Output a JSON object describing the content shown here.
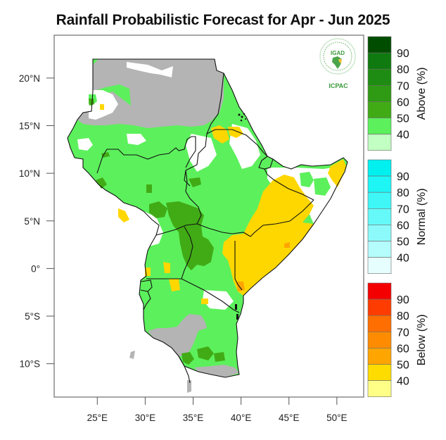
{
  "title": "Rainfall Probabilistic Forecast for Apr - Jun 2025",
  "logo": {
    "top_text": "IGAD",
    "bottom_text": "ICPAC",
    "icon": "igad-africa-emblem-icon"
  },
  "axes": {
    "lat_ticks": [
      {
        "value": 20,
        "label": "20°N"
      },
      {
        "value": 15,
        "label": "15°N"
      },
      {
        "value": 10,
        "label": "10°N"
      },
      {
        "value": 5,
        "label": "5°N"
      },
      {
        "value": 0,
        "label": "0°"
      },
      {
        "value": -5,
        "label": "5°S"
      },
      {
        "value": -10,
        "label": "10°S"
      }
    ],
    "lon_ticks": [
      {
        "value": 25,
        "label": "25°E"
      },
      {
        "value": 30,
        "label": "30°E"
      },
      {
        "value": 35,
        "label": "35°E"
      },
      {
        "value": 40,
        "label": "40°E"
      },
      {
        "value": 45,
        "label": "45°E"
      },
      {
        "value": 50,
        "label": "50°E"
      }
    ],
    "lon_range": [
      20.5,
      52.8
    ],
    "lat_range": [
      -13.5,
      24.5
    ]
  },
  "legends": [
    {
      "title": "Above (%)",
      "labels": [
        "90",
        "80",
        "70",
        "60",
        "50",
        "40"
      ],
      "colors": [
        "#004d00",
        "#0f7a0f",
        "#1e8c12",
        "#2f9a14",
        "#41ab16",
        "#5cf05c",
        "#c2ffc2"
      ]
    },
    {
      "title": "Normal (%)",
      "labels": [
        "90",
        "80",
        "70",
        "60",
        "50",
        "40"
      ],
      "colors": [
        "#00f0f0",
        "#1ef5f5",
        "#40f7f7",
        "#66f9f9",
        "#8cfafa",
        "#b5fcfc",
        "#e6fefe"
      ]
    },
    {
      "title": "Below (%)",
      "labels": [
        "90",
        "80",
        "70",
        "60",
        "50",
        "40"
      ],
      "colors": [
        "#f50000",
        "#ff3c00",
        "#ff6e00",
        "#ff8c00",
        "#ffa500",
        "#ffdc00",
        "#ffff88"
      ]
    }
  ],
  "category_colors": {
    "above_40_50": "#5cf05c",
    "above_50_60": "#41ab16",
    "below_40_50": "#ffd700",
    "below_50_60": "#ffa500",
    "dry_season_mask": "#b4b4b4",
    "border": "#111111"
  }
}
